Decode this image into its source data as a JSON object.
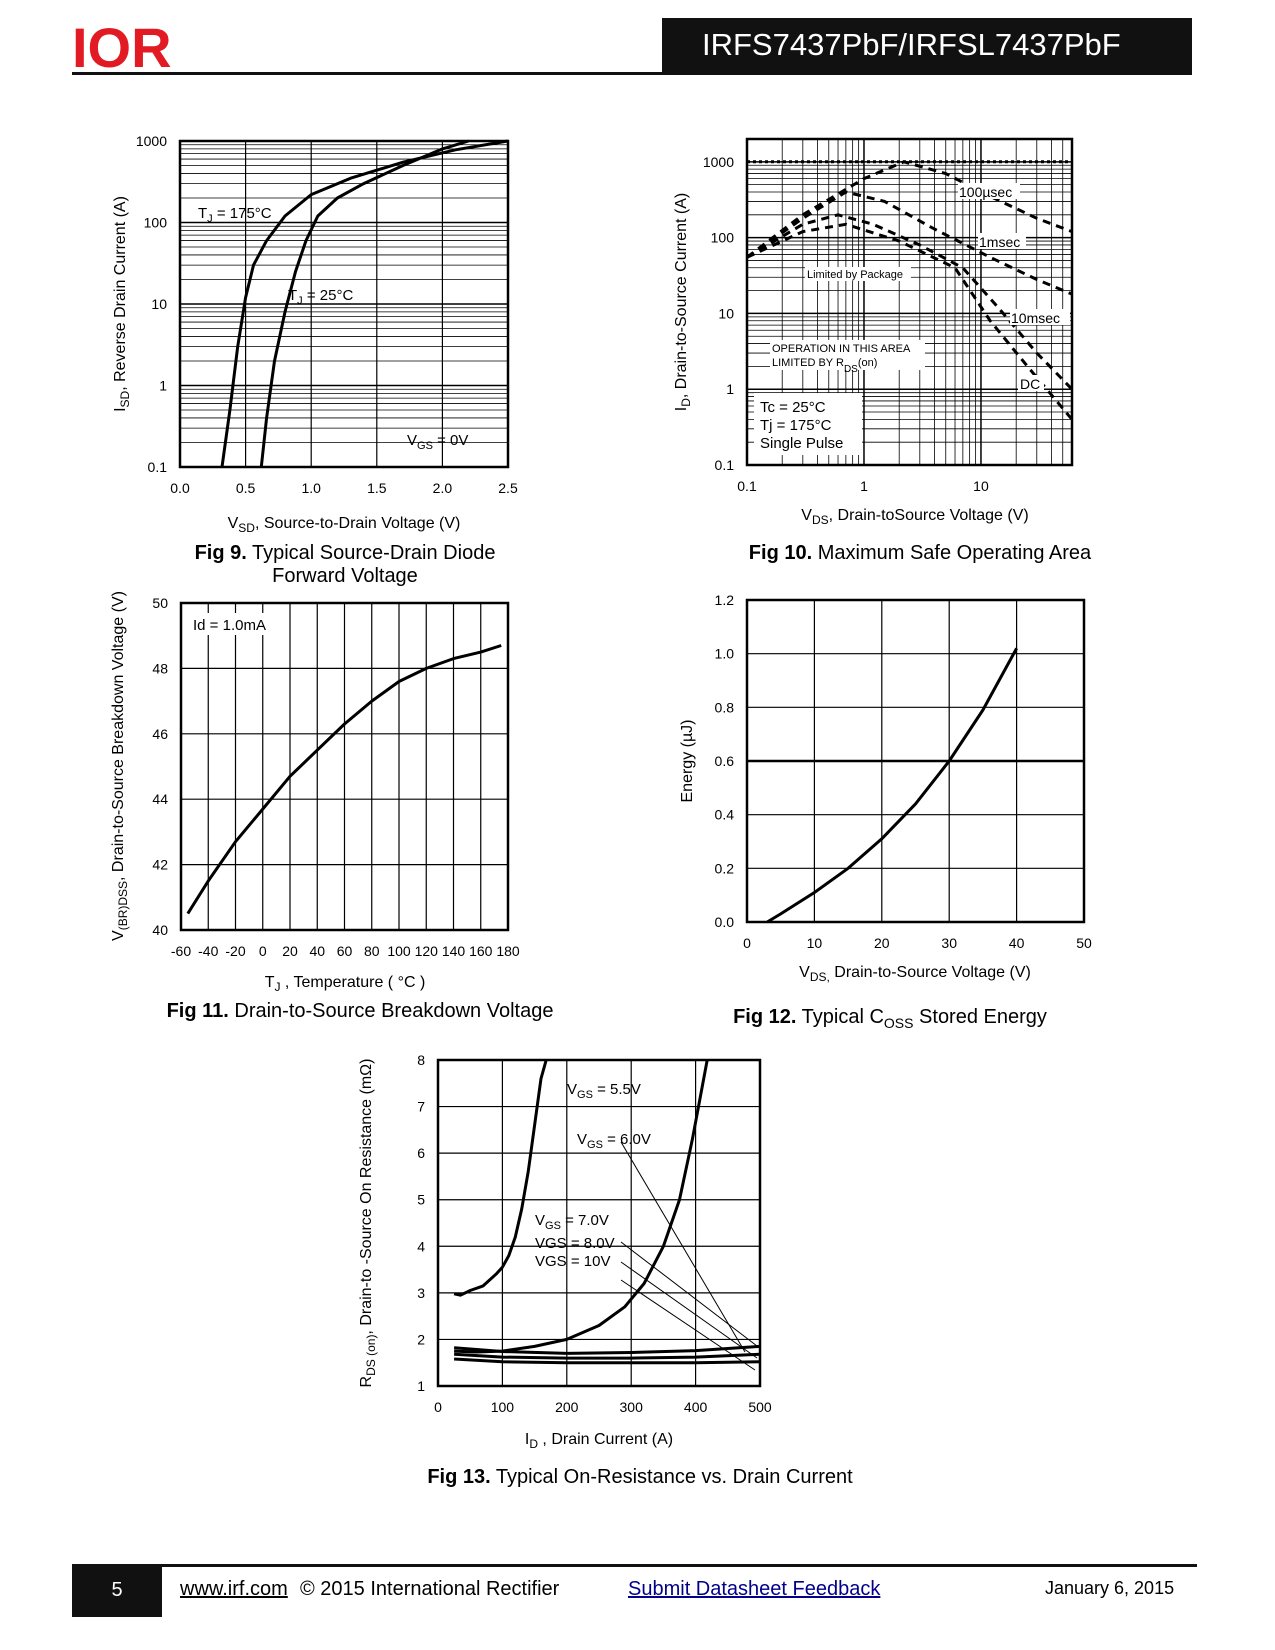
{
  "header": {
    "title": "IRFS7437PbF/IRFSL7437PbF",
    "logo_text": "IOR",
    "logo_color": "#e21a23"
  },
  "footer": {
    "page_number": "5",
    "website": "www.irf.com",
    "copyright": "© 2015 International Rectifier",
    "feedback_link": "Submit Datasheet Feedback",
    "date": "January 6, 2015"
  },
  "figures": {
    "fig9": {
      "label": "Fig 9.",
      "title_line1": "Typical Source-Drain Diode",
      "title_line2": "Forward Voltage"
    },
    "fig10": {
      "label": "Fig 10.",
      "title": "Maximum Safe Operating Area"
    },
    "fig11": {
      "label": "Fig 11.",
      "title": "Drain-to-Source Breakdown Voltage"
    },
    "fig12": {
      "label": "Fig 12.",
      "title_pre": "Typical C",
      "title_sub": "OSS",
      "title_post": " Stored Energy"
    },
    "fig13": {
      "label": "Fig 13.",
      "title": "Typical On-Resistance vs. Drain Current"
    }
  },
  "chart_data": [
    {
      "id": "fig9",
      "type": "line",
      "title": "Typical Source-Drain Diode Forward Voltage",
      "xlabel": {
        "main": "V",
        "sub": "SD",
        "rest": ", Source-to-Drain Voltage (V)"
      },
      "ylabel": {
        "main": "I",
        "sub": "SD",
        "rest": ", Reverse Drain Current (A)"
      },
      "x_scale": "linear",
      "y_scale": "log",
      "xlim": [
        0,
        2.5
      ],
      "ylim": [
        0.1,
        1000
      ],
      "x_ticks": [
        "0.0",
        "0.5",
        "1.0",
        "1.5",
        "2.0",
        "2.5"
      ],
      "y_ticks": [
        "0.1",
        "1",
        "10",
        "100",
        "1000"
      ],
      "series": [
        {
          "name": "TJ = 175°C",
          "points": [
            [
              0.32,
              0.1
            ],
            [
              0.38,
              0.5
            ],
            [
              0.44,
              3
            ],
            [
              0.5,
              12
            ],
            [
              0.56,
              30
            ],
            [
              0.66,
              60
            ],
            [
              0.8,
              120
            ],
            [
              1.0,
              220
            ],
            [
              1.3,
              350
            ],
            [
              1.7,
              550
            ],
            [
              2.1,
              780
            ],
            [
              2.5,
              1000
            ]
          ]
        },
        {
          "name": "TJ = 25°C",
          "points": [
            [
              0.62,
              0.1
            ],
            [
              0.66,
              0.4
            ],
            [
              0.72,
              2
            ],
            [
              0.8,
              8
            ],
            [
              0.88,
              25
            ],
            [
              0.96,
              60
            ],
            [
              1.05,
              120
            ],
            [
              1.2,
              200
            ],
            [
              1.4,
              300
            ],
            [
              1.7,
              500
            ],
            [
              2.0,
              800
            ],
            [
              2.2,
              1000
            ]
          ]
        }
      ],
      "annotations": [
        {
          "text_main": "T",
          "text_sub": "J",
          "text_rest": " = 175°C"
        },
        {
          "text_main": "T",
          "text_sub": "J",
          "text_rest": " = 25°C"
        },
        {
          "text_main": "V",
          "text_sub": "GS",
          "text_rest": " = 0V"
        }
      ]
    },
    {
      "id": "fig10",
      "type": "line",
      "title": "Maximum Safe Operating Area",
      "xlabel": {
        "main": "V",
        "sub": "DS",
        "rest": ", Drain-toSource Voltage (V)"
      },
      "ylabel": {
        "main": "I",
        "sub": "D",
        "rest": ",  Drain-to-Source Current (A)"
      },
      "x_scale": "log",
      "y_scale": "log",
      "xlim": [
        0.1,
        60
      ],
      "ylim": [
        0.1,
        2000
      ],
      "x_ticks": [
        "0.1",
        "1",
        "10"
      ],
      "y_ticks": [
        "0.1",
        "1",
        "10",
        "100",
        "1000"
      ],
      "series": [
        {
          "name": "Limited by Package",
          "style": "dotted",
          "points": [
            [
              0.1,
              1000
            ],
            [
              60,
              1000
            ]
          ]
        },
        {
          "name": "100µsec",
          "style": "dashed",
          "points": [
            [
              0.1,
              55
            ],
            [
              0.3,
              200
            ],
            [
              1,
              600
            ],
            [
              2.2,
              1000
            ],
            [
              5,
              700
            ],
            [
              12,
              350
            ],
            [
              30,
              180
            ],
            [
              60,
              120
            ]
          ]
        },
        {
          "name": "1msec",
          "style": "dashed",
          "points": [
            [
              0.1,
              55
            ],
            [
              0.3,
              180
            ],
            [
              0.7,
              400
            ],
            [
              1.5,
              300
            ],
            [
              4,
              130
            ],
            [
              12,
              55
            ],
            [
              30,
              28
            ],
            [
              60,
              18
            ]
          ]
        },
        {
          "name": "10msec",
          "style": "dashed",
          "points": [
            [
              0.1,
              55
            ],
            [
              0.3,
              150
            ],
            [
              0.6,
              200
            ],
            [
              1.2,
              150
            ],
            [
              3,
              80
            ],
            [
              7,
              40
            ],
            [
              14,
              12
            ],
            [
              30,
              3
            ],
            [
              60,
              1
            ]
          ]
        },
        {
          "name": "DC",
          "style": "dashed",
          "points": [
            [
              0.1,
              55
            ],
            [
              0.3,
              120
            ],
            [
              0.7,
              150
            ],
            [
              2,
              90
            ],
            [
              6,
              40
            ],
            [
              12,
              8
            ],
            [
              25,
              2
            ],
            [
              60,
              0.4
            ]
          ]
        }
      ],
      "annotations": [
        {
          "text": "100µsec"
        },
        {
          "text": "1msec"
        },
        {
          "text": "10msec"
        },
        {
          "text": "DC"
        },
        {
          "text": "Limited by Package"
        },
        {
          "text_line1": "OPERATION IN THIS AREA",
          "text_line2_main": "LIMITED BY R",
          "text_line2_sub": "DS",
          "text_line2_rest": "(on)"
        },
        {
          "text_line1": "Tc = 25°C",
          "text_line2": "Tj = 175°C",
          "text_line3": "Single Pulse"
        }
      ]
    },
    {
      "id": "fig11",
      "type": "line",
      "title": "Drain-to-Source Breakdown Voltage",
      "xlabel": {
        "main": "T",
        "sub": "J",
        "rest": " , Temperature ( °C )"
      },
      "ylabel": {
        "main": "V",
        "sub": "(BR)DSS",
        "rest": ", Drain-to-Source Breakdown Voltage (V)"
      },
      "x_scale": "linear",
      "y_scale": "linear",
      "xlim": [
        -60,
        180
      ],
      "ylim": [
        40,
        50
      ],
      "x_ticks": [
        "-60",
        "-40",
        "-20",
        "0",
        "20",
        "40",
        "60",
        "80",
        "100",
        "120",
        "140",
        "160",
        "180"
      ],
      "y_ticks": [
        "40",
        "42",
        "44",
        "46",
        "48",
        "50"
      ],
      "series": [
        {
          "name": "Id = 1.0mA",
          "points": [
            [
              -55,
              40.5
            ],
            [
              -40,
              41.5
            ],
            [
              -20,
              42.7
            ],
            [
              0,
              43.7
            ],
            [
              20,
              44.7
            ],
            [
              40,
              45.5
            ],
            [
              60,
              46.3
            ],
            [
              80,
              47.0
            ],
            [
              100,
              47.6
            ],
            [
              120,
              48.0
            ],
            [
              140,
              48.3
            ],
            [
              160,
              48.5
            ],
            [
              175,
              48.7
            ]
          ]
        }
      ],
      "annotations": [
        {
          "text": "Id = 1.0mA"
        }
      ]
    },
    {
      "id": "fig12",
      "type": "line",
      "title": "Typical COSS Stored Energy",
      "xlabel": {
        "main": "V",
        "sub": "DS,",
        "rest": " Drain-to-Source Voltage (V)"
      },
      "ylabel": {
        "main": "Energy (µJ)",
        "sub": "",
        "rest": ""
      },
      "x_scale": "linear",
      "y_scale": "linear",
      "xlim": [
        0,
        50
      ],
      "ylim": [
        0.0,
        1.2
      ],
      "x_ticks": [
        "0",
        "10",
        "20",
        "30",
        "40",
        "50"
      ],
      "y_ticks": [
        "0.0",
        "0.2",
        "0.4",
        "0.6",
        "0.8",
        "1.0",
        "1.2"
      ],
      "series": [
        {
          "name": "Eoss",
          "points": [
            [
              3,
              0
            ],
            [
              5,
              0.03
            ],
            [
              10,
              0.11
            ],
            [
              15,
              0.2
            ],
            [
              20,
              0.31
            ],
            [
              25,
              0.44
            ],
            [
              30,
              0.6
            ],
            [
              35,
              0.79
            ],
            [
              40,
              1.02
            ]
          ]
        }
      ]
    },
    {
      "id": "fig13",
      "type": "line",
      "title": "Typical On-Resistance vs. Drain Current",
      "xlabel": {
        "main": "I",
        "sub": "D",
        "rest": " , Drain Current (A)"
      },
      "ylabel": {
        "main": "R",
        "sub": "DS (on)",
        "rest": ", Drain-to -Source On Resistance (mΩ)"
      },
      "x_scale": "linear",
      "y_scale": "linear",
      "xlim": [
        0,
        500
      ],
      "ylim": [
        1,
        8
      ],
      "x_ticks": [
        "0",
        "100",
        "200",
        "300",
        "400",
        "500"
      ],
      "y_ticks": [
        "1",
        "2",
        "3",
        "4",
        "5",
        "6",
        "7",
        "8"
      ],
      "series": [
        {
          "name": "VGS = 5.5V",
          "points": [
            [
              25,
              2.98
            ],
            [
              35,
              2.95
            ],
            [
              50,
              3.05
            ],
            [
              70,
              3.15
            ],
            [
              90,
              3.4
            ],
            [
              100,
              3.55
            ],
            [
              110,
              3.8
            ],
            [
              120,
              4.2
            ],
            [
              130,
              4.8
            ],
            [
              140,
              5.6
            ],
            [
              150,
              6.6
            ],
            [
              160,
              7.6
            ],
            [
              168,
              8
            ]
          ]
        },
        {
          "name": "VGS = 6.0V",
          "points": [
            [
              25,
              1.75
            ],
            [
              60,
              1.73
            ],
            [
              100,
              1.75
            ],
            [
              150,
              1.85
            ],
            [
              200,
              2.0
            ],
            [
              250,
              2.3
            ],
            [
              290,
              2.7
            ],
            [
              320,
              3.2
            ],
            [
              350,
              4.0
            ],
            [
              375,
              5.0
            ],
            [
              395,
              6.3
            ],
            [
              410,
              7.4
            ],
            [
              418,
              8
            ]
          ]
        },
        {
          "name": "VGS = 7.0V",
          "points": [
            [
              25,
              1.82
            ],
            [
              100,
              1.74
            ],
            [
              200,
              1.7
            ],
            [
              300,
              1.72
            ],
            [
              400,
              1.76
            ],
            [
              500,
              1.85
            ]
          ]
        },
        {
          "name": "VGS = 8.0V",
          "points": [
            [
              25,
              1.68
            ],
            [
              100,
              1.62
            ],
            [
              200,
              1.6
            ],
            [
              300,
              1.6
            ],
            [
              400,
              1.62
            ],
            [
              500,
              1.68
            ]
          ]
        },
        {
          "name": "VGS = 10V",
          "points": [
            [
              25,
              1.58
            ],
            [
              100,
              1.52
            ],
            [
              200,
              1.5
            ],
            [
              300,
              1.5
            ],
            [
              400,
              1.5
            ],
            [
              500,
              1.52
            ]
          ]
        }
      ],
      "annotations": [
        {
          "text_main": "V",
          "text_sub": "GS",
          "text_rest": " = 5.5V"
        },
        {
          "text_main": "V",
          "text_sub": "GS",
          "text_rest": " = 6.0V"
        },
        {
          "text_main": "V",
          "text_sub": "GS",
          "text_rest": " = 7.0V"
        },
        {
          "text": "VGS = 8.0V"
        },
        {
          "text": "VGS = 10V"
        }
      ]
    }
  ]
}
